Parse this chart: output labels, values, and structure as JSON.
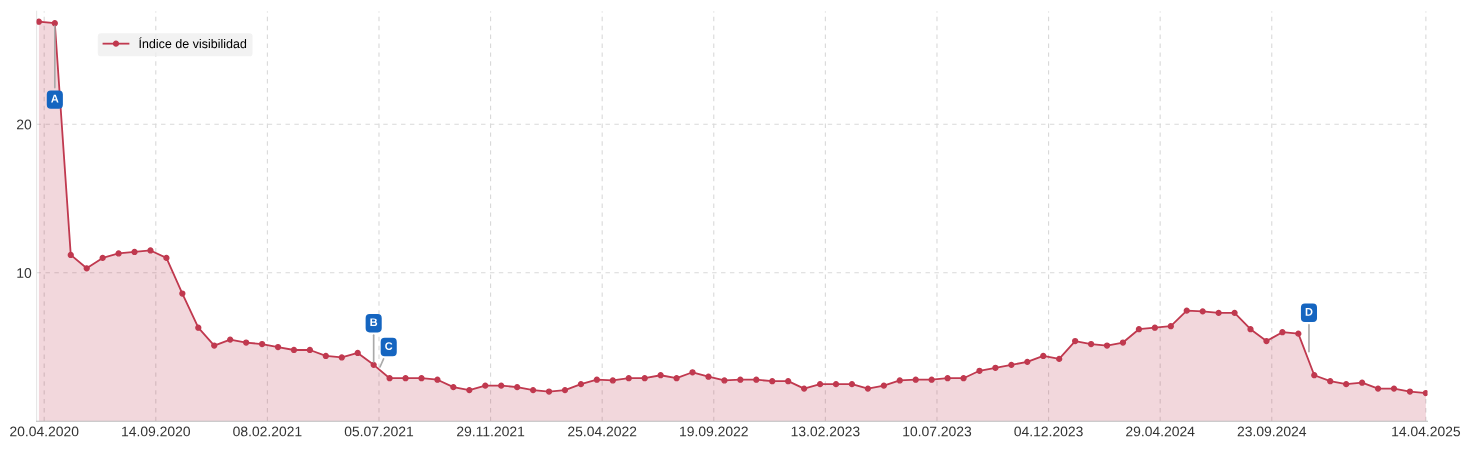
{
  "chart_data": {
    "type": "area",
    "x": [
      "2020-04-13",
      "2020-05-04",
      "2020-05-25",
      "2020-06-15",
      "2020-07-06",
      "2020-07-27",
      "2020-08-17",
      "2020-09-07",
      "2020-09-28",
      "2020-10-19",
      "2020-11-09",
      "2020-11-30",
      "2020-12-21",
      "2021-01-11",
      "2021-02-01",
      "2021-02-22",
      "2021-03-15",
      "2021-04-05",
      "2021-04-26",
      "2021-05-17",
      "2021-06-07",
      "2021-06-28",
      "2021-07-19",
      "2021-08-09",
      "2021-08-30",
      "2021-09-20",
      "2021-10-11",
      "2021-11-01",
      "2021-11-22",
      "2021-12-13",
      "2022-01-03",
      "2022-01-24",
      "2022-02-14",
      "2022-03-07",
      "2022-03-28",
      "2022-04-18",
      "2022-05-09",
      "2022-05-30",
      "2022-06-20",
      "2022-07-11",
      "2022-08-01",
      "2022-08-22",
      "2022-09-12",
      "2022-10-03",
      "2022-10-24",
      "2022-11-14",
      "2022-12-05",
      "2022-12-26",
      "2023-01-16",
      "2023-02-06",
      "2023-02-27",
      "2023-03-20",
      "2023-04-10",
      "2023-05-01",
      "2023-05-22",
      "2023-06-12",
      "2023-07-03",
      "2023-07-24",
      "2023-08-14",
      "2023-09-04",
      "2023-09-25",
      "2023-10-16",
      "2023-11-06",
      "2023-11-27",
      "2023-12-18",
      "2024-01-08",
      "2024-01-29",
      "2024-02-19",
      "2024-03-11",
      "2024-04-01",
      "2024-04-22",
      "2024-05-13",
      "2024-06-03",
      "2024-06-24",
      "2024-07-15",
      "2024-08-05",
      "2024-08-26",
      "2024-09-16",
      "2024-10-07",
      "2024-10-28",
      "2024-11-18",
      "2024-12-09",
      "2024-12-30",
      "2025-01-20",
      "2025-02-10",
      "2025-03-03",
      "2025-03-24",
      "2025-04-14"
    ],
    "series": [
      {
        "name": "Índice de visibilidad",
        "color": "#c0394f",
        "values": [
          26.9,
          26.8,
          11.2,
          10.3,
          11.0,
          11.3,
          11.4,
          11.5,
          11.0,
          8.6,
          6.3,
          5.1,
          5.5,
          5.3,
          5.2,
          5.0,
          4.8,
          4.8,
          4.4,
          4.3,
          4.6,
          3.8,
          2.9,
          2.9,
          2.9,
          2.8,
          2.3,
          2.1,
          2.4,
          2.4,
          2.3,
          2.1,
          2.0,
          2.1,
          2.5,
          2.8,
          2.75,
          2.9,
          2.9,
          3.1,
          2.9,
          3.3,
          3.0,
          2.75,
          2.8,
          2.8,
          2.7,
          2.7,
          2.2,
          2.5,
          2.5,
          2.5,
          2.2,
          2.4,
          2.75,
          2.8,
          2.8,
          2.9,
          2.9,
          3.4,
          3.6,
          3.8,
          4.0,
          4.4,
          4.2,
          5.4,
          5.2,
          5.1,
          5.3,
          6.2,
          6.3,
          6.4,
          7.45,
          7.4,
          7.3,
          7.3,
          6.2,
          5.4,
          6.0,
          5.9,
          3.1,
          2.7,
          2.5,
          2.6,
          2.2,
          2.2,
          2.0,
          1.9
        ]
      }
    ],
    "xlim": [
      "2020-04-10",
      "2025-04-16"
    ],
    "xticks": [
      {
        "value": "2020-04-20",
        "label": "20.04.2020"
      },
      {
        "value": "2020-09-14",
        "label": "14.09.2020"
      },
      {
        "value": "2021-02-08",
        "label": "08.02.2021"
      },
      {
        "value": "2021-07-05",
        "label": "05.07.2021"
      },
      {
        "value": "2021-11-29",
        "label": "29.11.2021"
      },
      {
        "value": "2022-04-25",
        "label": "25.04.2022"
      },
      {
        "value": "2022-09-19",
        "label": "19.09.2022"
      },
      {
        "value": "2023-02-13",
        "label": "13.02.2023"
      },
      {
        "value": "2023-07-10",
        "label": "10.07.2023"
      },
      {
        "value": "2023-12-04",
        "label": "04.12.2023"
      },
      {
        "value": "2024-04-29",
        "label": "29.04.2024"
      },
      {
        "value": "2024-09-23",
        "label": "23.09.2024"
      },
      {
        "value": "2025-04-14",
        "label": "14.04.2025"
      }
    ],
    "ylim": [
      0,
      27.6
    ],
    "yticks": [
      10,
      20
    ],
    "grid": true,
    "legend": "top left",
    "marker": "circle",
    "annotations": [
      {
        "text": "A",
        "x": "2020-05-04",
        "y": 26.8
      },
      {
        "text": "B",
        "x": "2021-06-28",
        "y": 3.8
      },
      {
        "text": "C",
        "x": "2021-07-05",
        "y": 3.5
      },
      {
        "text": "D",
        "x": "2024-11-11",
        "y": 4.5
      }
    ]
  }
}
